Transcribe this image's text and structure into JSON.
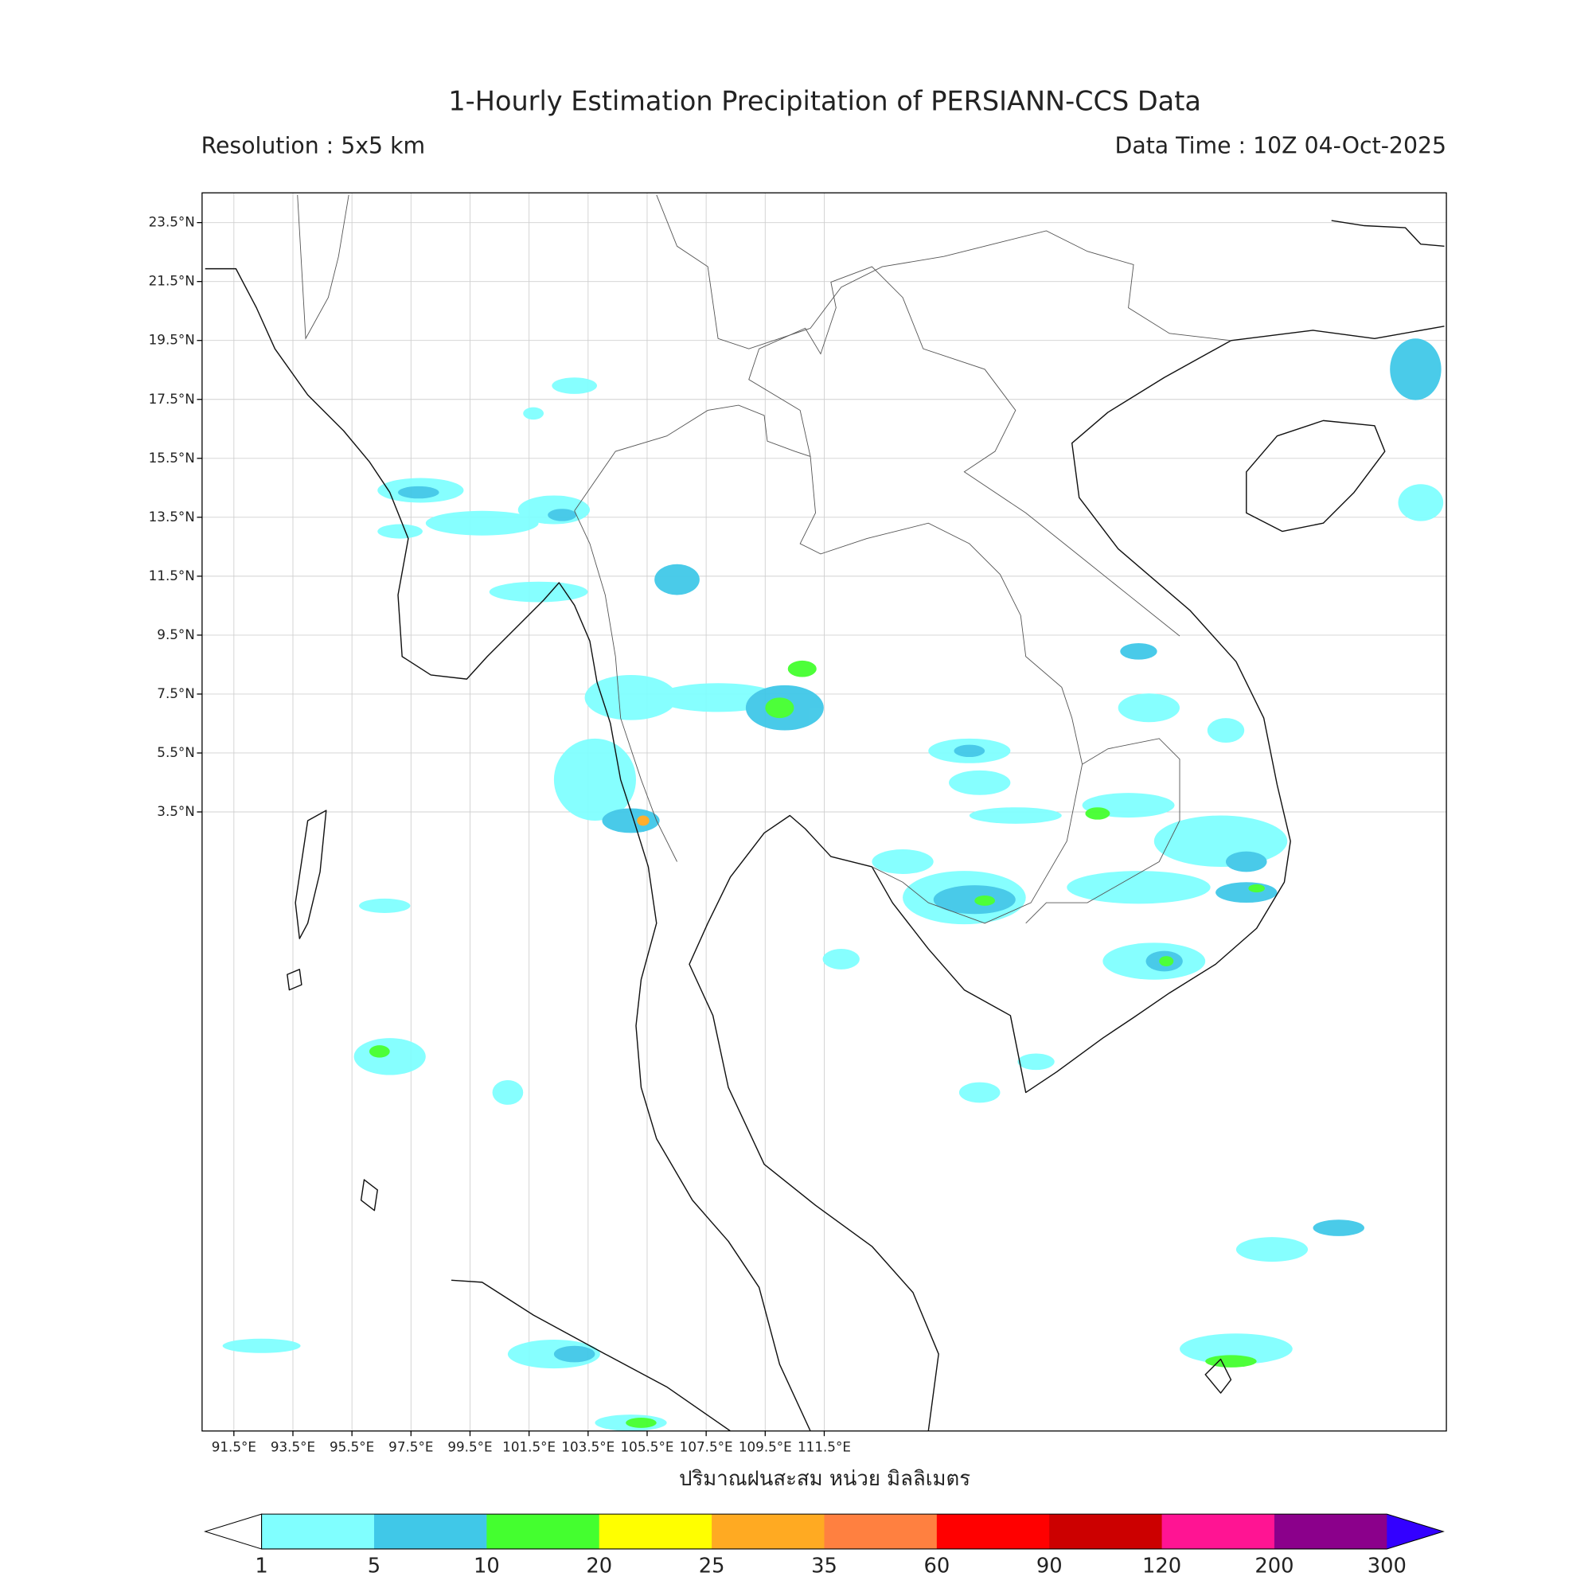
{
  "header": {
    "title": "1-Hourly Estimation Precipitation of PERSIANN-CCS Data",
    "resolution": "Resolution : 5x5 km",
    "data_time": "Data Time : 10Z 04-Oct-2025"
  },
  "map": {
    "x_ticks": [
      "91.5°E",
      "93.5°E",
      "95.5°E",
      "97.5°E",
      "99.5°E",
      "101.5°E",
      "103.5°E",
      "105.5°E",
      "107.5°E",
      "109.5°E",
      "111.5°E"
    ],
    "y_ticks": [
      "23.5°N",
      "21.5°N",
      "19.5°N",
      "17.5°N",
      "15.5°N",
      "13.5°N",
      "11.5°N",
      "9.5°N",
      "7.5°N",
      "5.5°N",
      "3.5°N"
    ],
    "x_axis_label": "ปริมาณฝนสะสม หน่วย มิลลิเมตร"
  },
  "colorbar": {
    "levels": [
      "1",
      "5",
      "10",
      "20",
      "25",
      "35",
      "60",
      "90",
      "120",
      "200",
      "300"
    ],
    "colors": [
      "#80ffff",
      "#40c8e8",
      "#44ff2f",
      "#ffff00",
      "#ffaa22",
      "#ff8040",
      "#ff0000",
      "#cc0000",
      "#ff1493",
      "#8b008b",
      "#3300ff"
    ]
  }
}
